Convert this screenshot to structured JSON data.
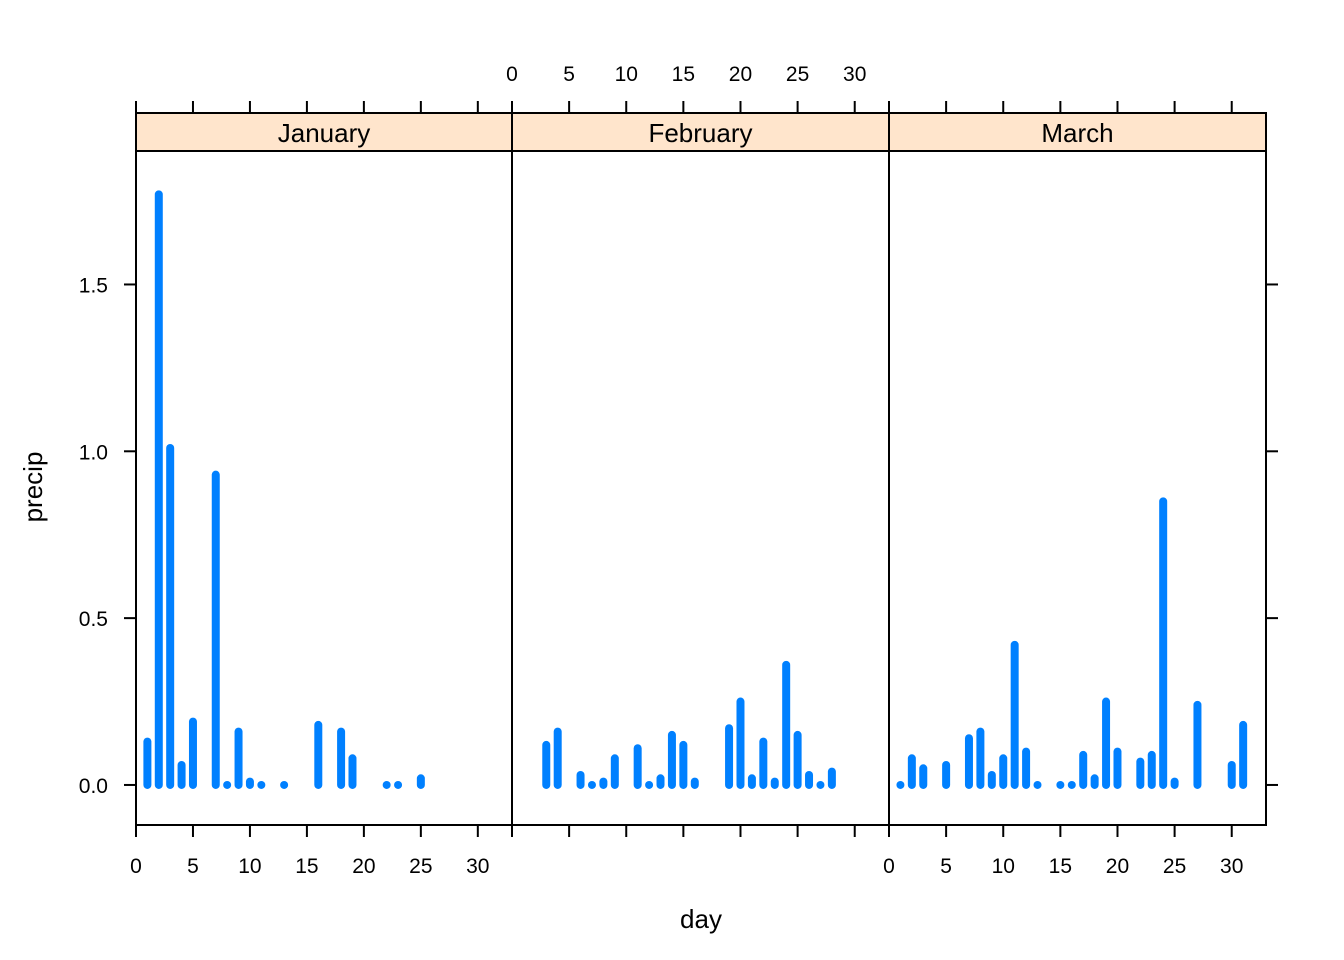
{
  "chart_data": {
    "type": "bar",
    "xlabel": "day",
    "ylabel": "precip",
    "xlim": [
      0,
      33
    ],
    "ylim": [
      -0.12,
      1.9
    ],
    "x_ticks": [
      0,
      5,
      10,
      15,
      20,
      25,
      30
    ],
    "y_ticks": [
      0.0,
      0.5,
      1.0,
      1.5
    ],
    "y_tick_labels": [
      "0.0",
      "0.5",
      "1.0",
      "1.5"
    ],
    "bar_color": "#0080ff",
    "strip_color": "#ffe5cc",
    "panels": [
      {
        "name": "January",
        "x": [
          1,
          2,
          3,
          4,
          5,
          7,
          8,
          9,
          10,
          11,
          13,
          16,
          18,
          19,
          22,
          23,
          25
        ],
        "values": [
          0.13,
          1.77,
          1.01,
          0.06,
          0.19,
          0.93,
          0.0,
          0.16,
          0.01,
          0.0,
          0.0,
          0.18,
          0.16,
          0.08,
          0.0,
          0.0,
          0.02
        ]
      },
      {
        "name": "February",
        "x": [
          3,
          4,
          6,
          7,
          8,
          9,
          11,
          12,
          13,
          14,
          15,
          16,
          19,
          20,
          21,
          22,
          23,
          24,
          25,
          26,
          27,
          28
        ],
        "values": [
          0.12,
          0.16,
          0.03,
          0.0,
          0.01,
          0.08,
          0.11,
          0.0,
          0.02,
          0.15,
          0.12,
          0.01,
          0.17,
          0.25,
          0.02,
          0.13,
          0.01,
          0.36,
          0.15,
          0.03,
          0.0,
          0.04
        ]
      },
      {
        "name": "March",
        "x": [
          1,
          2,
          3,
          5,
          7,
          8,
          9,
          10,
          11,
          12,
          13,
          15,
          16,
          17,
          18,
          19,
          20,
          22,
          23,
          24,
          25,
          27,
          30,
          31
        ],
        "values": [
          0.0,
          0.08,
          0.05,
          0.06,
          0.14,
          0.16,
          0.03,
          0.08,
          0.42,
          0.1,
          0.0,
          0.0,
          0.0,
          0.09,
          0.02,
          0.25,
          0.1,
          0.07,
          0.09,
          0.85,
          0.01,
          0.24,
          0.06,
          0.18
        ]
      }
    ]
  }
}
